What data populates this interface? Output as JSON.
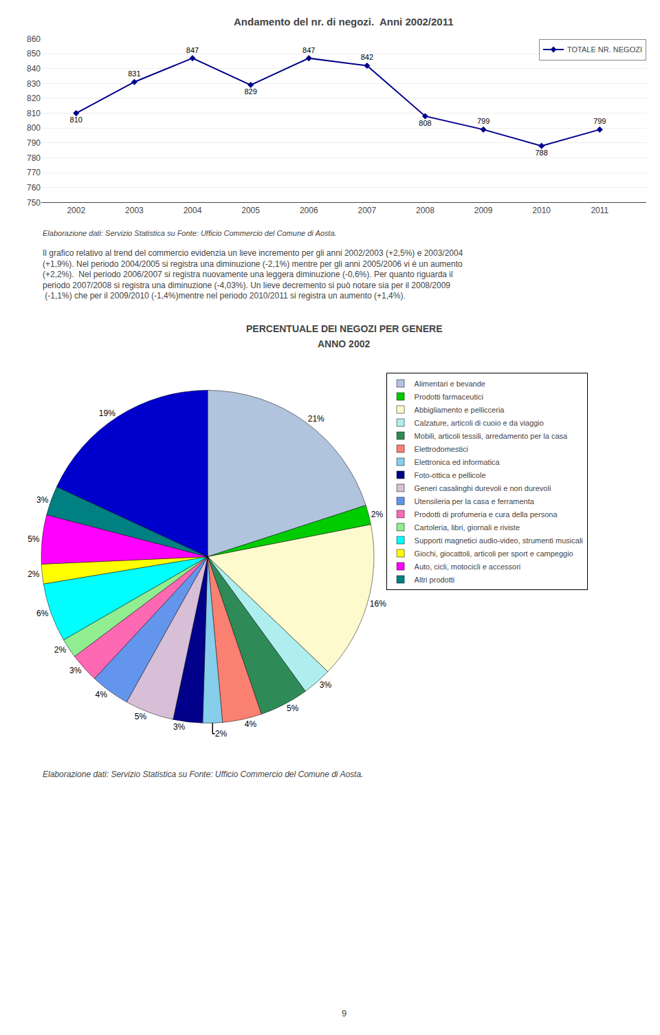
{
  "chart_data": [
    {
      "type": "line",
      "title": "Andamento del nr. di negozi.  Anni 2002/2011",
      "x": [
        2002,
        2003,
        2004,
        2005,
        2006,
        2007,
        2008,
        2009,
        2010,
        2011
      ],
      "series": [
        {
          "name": "TOTALE NR. NEGOZI",
          "color": "#00008B",
          "marker": "diamond",
          "values": [
            810,
            831,
            847,
            829,
            847,
            842,
            808,
            799,
            788,
            799
          ]
        }
      ],
      "xlim": [
        2001.4,
        2011.8
      ],
      "xticks": [
        2002,
        2003,
        2004,
        2005,
        2006,
        2007,
        2008,
        2009,
        2010,
        2011
      ],
      "ylim": [
        750,
        860
      ],
      "yticks": [
        750,
        760,
        770,
        780,
        790,
        800,
        810,
        820,
        830,
        840,
        850,
        860
      ],
      "grid": true,
      "legend": "upper right",
      "data_labels": true,
      "annotations": [
        "Elaborazione dati: Servizio Statistica su Fonte: Ufficio Commercio del Comune di Aosta.",
        "Il grafico relativo al trend del commercio evidenzia un lieve incremento per gli anni 2002/2003 (+2,5%) e 2003/2004\n(+1,9%). Nel periodo 2004/2005 si registra una diminuzione (-2,1%) mentre per gli anni 2005/2006 vi è un aumento\n(+2,2%).  Nel periodo 2006/2007 si registra nuovamente una leggera diminuzione (-0,6%). Per quanto riguarda il\nperiodo 2007/2008 si registra una diminuzione (-4,03%). Un lieve decremento si può notare sia per il 2008/2009\n (-1,1%) che per il 2009/2010 (-1,4%)mentre nel periodo 2010/2011 si registra un aumento (+1,4%)."
      ]
    },
    {
      "type": "pie",
      "title": "PERCENTUALE DEI NEGOZI PER GENERE",
      "subtitle": "ANNO 2002",
      "categories": [
        "Alimentari e bevande",
        "Prodotti farmaceutici",
        "Abbigliamento e pellicceria",
        "Calzature, articoli di cuoio e da viaggio",
        "Mobili, articoli tessili, arredamento per la casa",
        "Elettrodomestici",
        "Elettronica ed informatica",
        "Foto-ottica e pellicole",
        "Generi casalinghi durevoli e non durevoli",
        "Utensileria per la casa e ferramenta",
        "Prodotti di profumeria e cura della persona",
        "Cartoleria, libri, giornali e riviste",
        "Supporti magnetici audio-video, strumenti musicali",
        "Giochi, giocattoli, articoli per sport e campeggio",
        "Auto, cicli, motocicli e accessori",
        "Altri prodotti",
        null
      ],
      "values": [
        21,
        2,
        16,
        3,
        5,
        4,
        2,
        3,
        5,
        4,
        3,
        2,
        6,
        2,
        5,
        3,
        19
      ],
      "value_labels": [
        "21%",
        "2%",
        "16%",
        "3%",
        "5%",
        "4%",
        "2%",
        "3%",
        "5%",
        "4%",
        "3%",
        "2%",
        "6%",
        "2%",
        "5%",
        "3%",
        "19%"
      ],
      "colors": [
        "#B0C4DE",
        "#00CC00",
        "#FFFACD",
        "#AFEEEE",
        "#2E8B57",
        "#FA8072",
        "#87CEEB",
        "#00008B",
        "#D8BFD8",
        "#6495ED",
        "#FF69B4",
        "#90EE90",
        "#00FFFF",
        "#FFFF00",
        "#FF00FF",
        "#008080",
        "#0000CD"
      ],
      "data_labels": true,
      "legend": "upper right",
      "annotations": [
        "Elaborazione dati: Servizio Statistica su Fonte: Ufficio Commercio del Comune di Aosta.",
        "9"
      ]
    }
  ]
}
